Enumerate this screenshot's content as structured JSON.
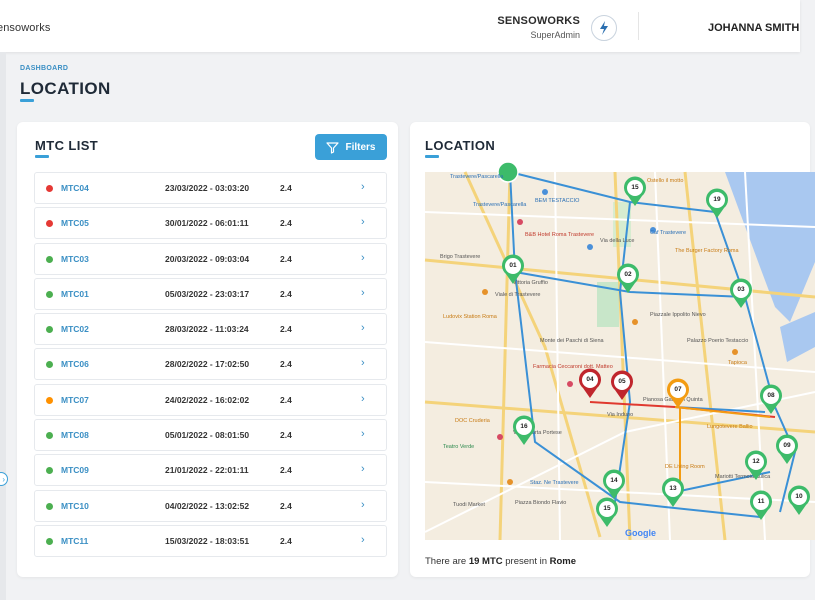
{
  "header": {
    "brand": "ensoworks",
    "org_name": "SENSOWORKS",
    "org_role": "SuperAdmin",
    "user_name": "JOHANNA SMITH"
  },
  "breadcrumb": "DASHBOARD",
  "page_title": "LOCATION",
  "mtc_card": {
    "title": "MTC LIST",
    "filters_label": "Filters",
    "rows": [
      {
        "name": "MTC04",
        "date": "23/03/2022 - 03:03:20",
        "value": "2.4",
        "status": "red"
      },
      {
        "name": "MTC05",
        "date": "30/01/2022 - 06:01:11",
        "value": "2.4",
        "status": "red"
      },
      {
        "name": "MTC03",
        "date": "20/03/2022 - 09:03:04",
        "value": "2.4",
        "status": "green"
      },
      {
        "name": "MTC01",
        "date": "05/03/2022 - 23:03:17",
        "value": "2.4",
        "status": "green"
      },
      {
        "name": "MTC02",
        "date": "28/03/2022 - 11:03:24",
        "value": "2.4",
        "status": "green"
      },
      {
        "name": "MTC06",
        "date": "28/02/2022 - 17:02:50",
        "value": "2.4",
        "status": "green"
      },
      {
        "name": "MTC07",
        "date": "24/02/2022 - 16:02:02",
        "value": "2.4",
        "status": "orange"
      },
      {
        "name": "MTC08",
        "date": "05/01/2022 - 08:01:50",
        "value": "2.4",
        "status": "green"
      },
      {
        "name": "MTC09",
        "date": "21/01/2022 - 22:01:11",
        "value": "2.4",
        "status": "green"
      },
      {
        "name": "MTC10",
        "date": "04/02/2022 - 13:02:52",
        "value": "2.4",
        "status": "green"
      },
      {
        "name": "MTC11",
        "date": "15/03/2022 - 18:03:51",
        "value": "2.4",
        "status": "green"
      }
    ]
  },
  "location_card": {
    "title": "LOCATION",
    "caption_prefix": "There are",
    "caption_count": "19 MTC",
    "caption_mid": "present in",
    "caption_city": "Rome",
    "google_label": "Google",
    "markers": [
      {
        "label": "15",
        "status": "green"
      },
      {
        "label": "19",
        "status": "green"
      },
      {
        "label": "01",
        "status": "green"
      },
      {
        "label": "02",
        "status": "green"
      },
      {
        "label": "03",
        "status": "green"
      },
      {
        "label": "04",
        "status": "red"
      },
      {
        "label": "05",
        "status": "red"
      },
      {
        "label": "07",
        "status": "orange"
      },
      {
        "label": "08",
        "status": "green"
      },
      {
        "label": "16",
        "status": "green"
      },
      {
        "label": "09",
        "status": "green"
      },
      {
        "label": "12",
        "status": "green"
      },
      {
        "label": "13",
        "status": "green"
      },
      {
        "label": "14",
        "status": "green"
      },
      {
        "label": "15",
        "status": "green"
      },
      {
        "label": "11",
        "status": "green"
      },
      {
        "label": "10",
        "status": "green"
      }
    ],
    "place_labels": [
      "Trastevere/Pascarella",
      "Trastevere/Pascarella",
      "BEM TESTACCIO",
      "B&B Hotel Roma Trastevere",
      "Ostello il motto",
      "Caf Trastevere",
      "The Burger Factory Roma",
      "Brigo Trastevere",
      "Vittoria Gruffio",
      "Ludovix Station Roma",
      "Monte dei Paschi di Siena",
      "Farmacia Ceccaroni dott. Matteo",
      "Piazzale Ippolito Nievo",
      "Palazzo Poerio Testaccio",
      "Tapioca",
      "Pianosa Gandolfi Quinta",
      "DOC Cruderia",
      "Teatro Verde",
      "Lungotevere Ballio",
      "DE Living Room",
      "Mariotti Termoidraulica",
      "Tuodi Market",
      "Piazza Biondo Flavio",
      "Staz. Ne Trastevere",
      "Via di Porta Portese",
      "Viale di Trastevere",
      "Via della Luce",
      "Via Induno"
    ]
  },
  "colors": {
    "accent": "#3aa0d8",
    "red": "#e53935",
    "green": "#4caf50",
    "orange": "#ff9100",
    "marker_green": "#3dbb6a",
    "marker_red": "#c0262d",
    "marker_orange": "#f39c12",
    "route_blue": "#3a90d6"
  },
  "icons": {
    "org_logo": "lightning-logo-icon",
    "filters": "funnel-icon",
    "row_chevron": "chevron-right-icon",
    "edge": "chevron-right-icon"
  }
}
